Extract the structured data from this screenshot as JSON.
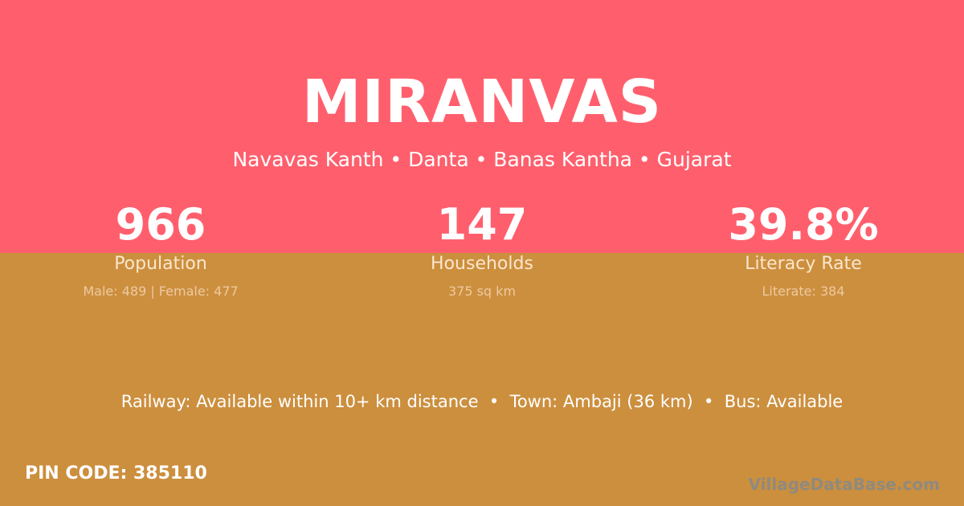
{
  "village": {
    "name": "MIRANVAS",
    "location": "Navavas Kanth • Danta • Banas Kantha • Gujarat"
  },
  "stats": [
    {
      "value": "966",
      "label": "Population",
      "detail": "Male: 489 | Female: 477"
    },
    {
      "value": "147",
      "label": "Households",
      "detail": "375 sq km"
    },
    {
      "value": "39.8%",
      "label": "Literacy Rate",
      "detail": "Literate: 384"
    }
  ],
  "amenities": "Railway: Available within 10+ km distance  •  Town: Ambaji (36 km)  •  Bus: Available",
  "pin_code": "PIN CODE: 385110",
  "watermark": "VillageDataBase.com",
  "colors": {
    "top_background": "#ff5f6d",
    "bottom_background": "#cc8f3e"
  }
}
